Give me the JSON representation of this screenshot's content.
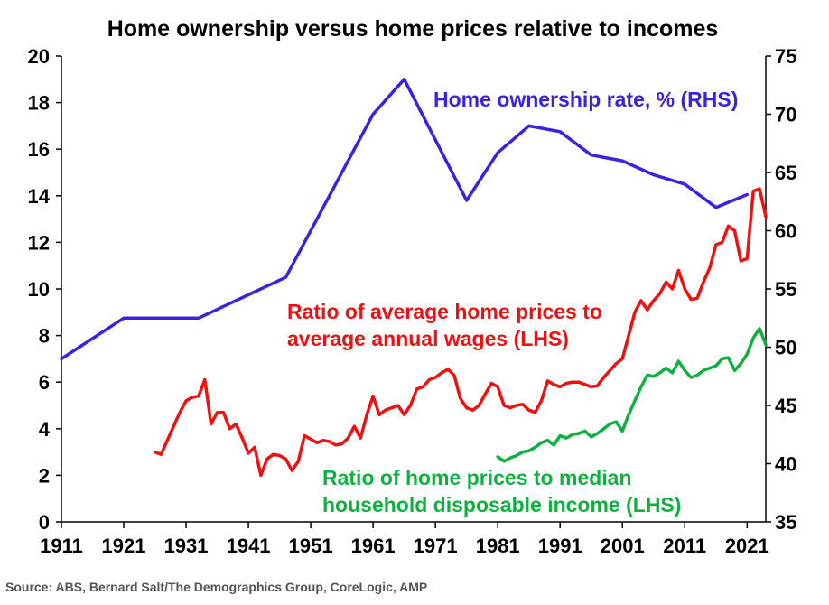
{
  "chart_data": {
    "type": "line",
    "title": "Home ownership versus home prices relative to incomes",
    "xlabel": "",
    "ylabel": "",
    "x_ticks": [
      "1911",
      "1921",
      "1931",
      "1941",
      "1951",
      "1961",
      "1971",
      "1981",
      "1991",
      "2001",
      "2011",
      "2021"
    ],
    "y_left_ticks": [
      "0",
      "2",
      "4",
      "6",
      "8",
      "10",
      "12",
      "14",
      "16",
      "18",
      "20"
    ],
    "y_right_ticks": [
      "35",
      "40",
      "45",
      "50",
      "55",
      "60",
      "65",
      "70",
      "75"
    ],
    "xlim": [
      1911,
      2024
    ],
    "ylim_left": [
      0,
      20
    ],
    "ylim_right": [
      35,
      75
    ],
    "grid": false,
    "colors": {
      "ownership": "#3a22e0",
      "wages": "#ee1111",
      "household": "#10b040"
    },
    "series": [
      {
        "name": "Home ownership rate, % (RHS)",
        "axis": "right",
        "label_lines": [
          "Home ownership rate, % (RHS)"
        ],
        "points": [
          [
            1911,
            49
          ],
          [
            1921,
            52.5
          ],
          [
            1933,
            52.5
          ],
          [
            1947,
            56
          ],
          [
            1961,
            70
          ],
          [
            1966,
            73
          ],
          [
            1976,
            62.6
          ],
          [
            1981,
            66.7
          ],
          [
            1986,
            69
          ],
          [
            1991,
            68.5
          ],
          [
            1996,
            66.5
          ],
          [
            2001,
            66
          ],
          [
            2006,
            64.8
          ],
          [
            2011,
            64
          ],
          [
            2016,
            62
          ],
          [
            2021,
            63.1
          ]
        ]
      },
      {
        "name": "Ratio of average home prices to average annual wages (LHS)",
        "axis": "left",
        "label_lines": [
          "Ratio of average home prices to",
          "average annual wages (LHS)"
        ],
        "points": [
          [
            1926,
            3.0
          ],
          [
            1927,
            2.9
          ],
          [
            1928,
            3.5
          ],
          [
            1929,
            4.1
          ],
          [
            1930,
            4.7
          ],
          [
            1931,
            5.2
          ],
          [
            1932,
            5.35
          ],
          [
            1933,
            5.4
          ],
          [
            1934,
            6.1
          ],
          [
            1935,
            4.2
          ],
          [
            1936,
            4.7
          ],
          [
            1937,
            4.7
          ],
          [
            1938,
            4.0
          ],
          [
            1939,
            4.2
          ],
          [
            1940,
            3.6
          ],
          [
            1941,
            2.95
          ],
          [
            1942,
            3.2
          ],
          [
            1943,
            2.0
          ],
          [
            1944,
            2.7
          ],
          [
            1945,
            2.9
          ],
          [
            1946,
            2.85
          ],
          [
            1947,
            2.7
          ],
          [
            1948,
            2.2
          ],
          [
            1949,
            2.6
          ],
          [
            1950,
            3.7
          ],
          [
            1951,
            3.55
          ],
          [
            1952,
            3.4
          ],
          [
            1953,
            3.5
          ],
          [
            1954,
            3.45
          ],
          [
            1955,
            3.3
          ],
          [
            1956,
            3.35
          ],
          [
            1957,
            3.6
          ],
          [
            1958,
            4.1
          ],
          [
            1959,
            3.6
          ],
          [
            1960,
            4.6
          ],
          [
            1961,
            5.4
          ],
          [
            1962,
            4.6
          ],
          [
            1963,
            4.8
          ],
          [
            1964,
            4.9
          ],
          [
            1965,
            5.0
          ],
          [
            1966,
            4.6
          ],
          [
            1967,
            5.0
          ],
          [
            1968,
            5.7
          ],
          [
            1969,
            5.8
          ],
          [
            1970,
            6.1
          ],
          [
            1971,
            6.2
          ],
          [
            1972,
            6.4
          ],
          [
            1973,
            6.55
          ],
          [
            1974,
            6.3
          ],
          [
            1975,
            5.3
          ],
          [
            1976,
            4.9
          ],
          [
            1977,
            4.8
          ],
          [
            1978,
            5.0
          ],
          [
            1979,
            5.5
          ],
          [
            1980,
            5.95
          ],
          [
            1981,
            5.8
          ],
          [
            1982,
            5.0
          ],
          [
            1983,
            4.9
          ],
          [
            1984,
            5.0
          ],
          [
            1985,
            5.05
          ],
          [
            1986,
            4.8
          ],
          [
            1987,
            4.7
          ],
          [
            1988,
            5.2
          ],
          [
            1989,
            6.05
          ],
          [
            1990,
            5.9
          ],
          [
            1991,
            5.8
          ],
          [
            1992,
            5.95
          ],
          [
            1993,
            6.0
          ],
          [
            1994,
            6.0
          ],
          [
            1995,
            5.9
          ],
          [
            1996,
            5.8
          ],
          [
            1997,
            5.85
          ],
          [
            1998,
            6.2
          ],
          [
            1999,
            6.5
          ],
          [
            2000,
            6.8
          ],
          [
            2001,
            7.0
          ],
          [
            2002,
            8.0
          ],
          [
            2003,
            9.0
          ],
          [
            2004,
            9.5
          ],
          [
            2005,
            9.1
          ],
          [
            2006,
            9.5
          ],
          [
            2007,
            9.8
          ],
          [
            2008,
            10.3
          ],
          [
            2009,
            10.0
          ],
          [
            2010,
            10.8
          ],
          [
            2011,
            10.0
          ],
          [
            2012,
            9.55
          ],
          [
            2013,
            9.6
          ],
          [
            2014,
            10.3
          ],
          [
            2015,
            10.9
          ],
          [
            2016,
            11.9
          ],
          [
            2017,
            12.0
          ],
          [
            2018,
            12.7
          ],
          [
            2019,
            12.5
          ],
          [
            2020,
            11.2
          ],
          [
            2021,
            11.3
          ],
          [
            2022,
            14.2
          ],
          [
            2023,
            14.3
          ],
          [
            2024,
            13.1
          ]
        ]
      },
      {
        "name": "Ratio of home prices to median household disposable income (LHS)",
        "axis": "left",
        "label_lines": [
          "Ratio of home prices to median",
          "household disposable income (LHS)"
        ],
        "points": [
          [
            1981,
            2.8
          ],
          [
            1982,
            2.6
          ],
          [
            1983,
            2.75
          ],
          [
            1984,
            2.85
          ],
          [
            1985,
            3.0
          ],
          [
            1986,
            3.05
          ],
          [
            1987,
            3.2
          ],
          [
            1988,
            3.4
          ],
          [
            1989,
            3.5
          ],
          [
            1990,
            3.3
          ],
          [
            1991,
            3.7
          ],
          [
            1992,
            3.6
          ],
          [
            1993,
            3.75
          ],
          [
            1994,
            3.8
          ],
          [
            1995,
            3.9
          ],
          [
            1996,
            3.65
          ],
          [
            1997,
            3.8
          ],
          [
            1998,
            4.0
          ],
          [
            1999,
            4.2
          ],
          [
            2000,
            4.3
          ],
          [
            2001,
            3.9
          ],
          [
            2002,
            4.6
          ],
          [
            2003,
            5.2
          ],
          [
            2004,
            5.8
          ],
          [
            2005,
            6.3
          ],
          [
            2006,
            6.25
          ],
          [
            2007,
            6.4
          ],
          [
            2008,
            6.6
          ],
          [
            2009,
            6.4
          ],
          [
            2010,
            6.9
          ],
          [
            2011,
            6.5
          ],
          [
            2012,
            6.2
          ],
          [
            2013,
            6.3
          ],
          [
            2014,
            6.5
          ],
          [
            2015,
            6.6
          ],
          [
            2016,
            6.7
          ],
          [
            2017,
            7.0
          ],
          [
            2018,
            7.05
          ],
          [
            2019,
            6.5
          ],
          [
            2020,
            6.8
          ],
          [
            2021,
            7.2
          ],
          [
            2022,
            7.9
          ],
          [
            2023,
            8.3
          ],
          [
            2024,
            7.6
          ]
        ]
      }
    ]
  },
  "source": "Source: ABS, Bernard Salt/The Demographics Group, CoreLogic, AMP"
}
